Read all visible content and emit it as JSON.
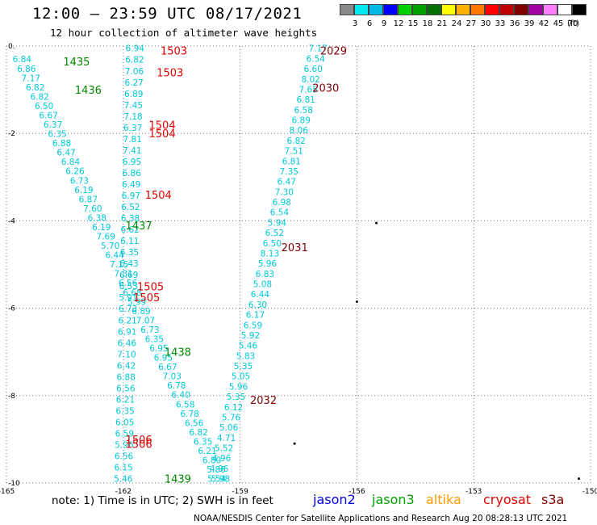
{
  "header": {
    "title": "12:00 – 23:59 UTC 08/17/2021",
    "subtitle": "12 hour collection of altimeter wave heights"
  },
  "color_scale": {
    "labels": [
      "3",
      "6",
      "9",
      "12",
      "15",
      "18",
      "21",
      "24",
      "27",
      "30",
      "33",
      "36",
      "39",
      "42",
      "45",
      "70"
    ],
    "unit": "(ft)",
    "colors": [
      "#888888",
      "#00e8f0",
      "#00b8e8",
      "#0000ff",
      "#00d000",
      "#00a000",
      "#007000",
      "#ffff00",
      "#ffb000",
      "#ff7800",
      "#ff0000",
      "#c00000",
      "#800000",
      "#a000a0",
      "#ff80ff",
      "#ffffff",
      "#000000"
    ]
  },
  "footer": {
    "note": "note:  1) Time is in UTC;  2) SWH is in feet",
    "satellites": [
      {
        "name": "jason2",
        "color": "#0000e0"
      },
      {
        "name": "jason3",
        "color": "#00a000"
      },
      {
        "name": "altika",
        "color": "#ff9900"
      },
      {
        "name": "cryosat",
        "color": "#e00000"
      },
      {
        "name": "s3a",
        "color": "#800000"
      }
    ],
    "credit": "NOAA/NESDIS Center for Satellite Applications and Research     Aug 20 08:28:13 UTC 2021"
  },
  "chart_data": {
    "type": "scatter",
    "xlim": [
      -165,
      -150
    ],
    "ylim": [
      -10,
      0
    ],
    "x_ticks": [
      "-165",
      "-162",
      "-159",
      "-156",
      "-153",
      "-150"
    ],
    "y_ticks": [
      "0.",
      "-2",
      "-4",
      "-6",
      "-8",
      "-10"
    ],
    "grid": true,
    "series": [
      {
        "track": "A",
        "color": "#00c8d8",
        "x0": -164.6,
        "y0": -0.3,
        "x1": -159.5,
        "y1": -9.9,
        "values": [
          "6.84",
          "6.86",
          "7.17",
          "6.82",
          "6.82",
          "6.50",
          "6.67",
          "6.37",
          "6.35",
          "6.88",
          "6.47",
          "6.84",
          "6.26",
          "6.73",
          "6.19",
          "6.87",
          "7.60",
          "6.38",
          "6.19",
          "7.69",
          "5.70",
          "6.44",
          "7.15",
          "7.31",
          "6.56",
          "6.68",
          "5.99",
          "6.89",
          "7.07",
          "6.73",
          "6.35",
          "6.95",
          "6.95",
          "6.67",
          "7.03",
          "6.78",
          "6.40",
          "6.58",
          "6.78",
          "6.56",
          "6.82",
          "6.35",
          "6.21",
          "6.80",
          "5.86",
          "5.98"
        ]
      },
      {
        "track": "B",
        "color": "#00c8d8",
        "x0": -161.7,
        "y0": -0.05,
        "x1": -162.0,
        "y1": -9.9,
        "values": [
          "6.94",
          "6.82",
          "7.06",
          "6.27",
          "6.89",
          "7.45",
          "7.18",
          "6.37",
          "7.81",
          "7.41",
          "6.95",
          "6.86",
          "6.49",
          "6.97",
          "6.52",
          "6.38",
          "6.62",
          "6.11",
          "6.35",
          "6.43",
          "6.69",
          "6.53",
          "5.91",
          "6.73",
          "6.21",
          "6.91",
          "6.46",
          "7.10",
          "6.42",
          "6.88",
          "6.56",
          "6.21",
          "6.35",
          "6.05",
          "6.59",
          "5.96",
          "6.56",
          "6.15",
          "5.46"
        ]
      },
      {
        "track": "C",
        "color": "#00c8d8",
        "x0": -157.0,
        "y0": -0.05,
        "x1": -159.6,
        "y1": -9.9,
        "values": [
          "7.17",
          "6.54",
          "6.60",
          "8.02",
          "7.65",
          "6.81",
          "6.58",
          "6.89",
          "8.06",
          "6.82",
          "7.51",
          "6.81",
          "7.35",
          "6.47",
          "7.30",
          "6.98",
          "6.54",
          "5.94",
          "6.52",
          "6.50",
          "8.13",
          "5.96",
          "6.83",
          "5.08",
          "6.44",
          "6.30",
          "6.17",
          "6.59",
          "5.92",
          "5.46",
          "5.83",
          "5.35",
          "5.05",
          "5.96",
          "5.35",
          "6.12",
          "5.76",
          "5.06",
          "4.71",
          "5.52",
          "4.96",
          "4.96",
          "5.54"
        ]
      },
      {
        "track": "labels",
        "items": [
          {
            "text": "1435",
            "x": -163.2,
            "y": -0.35,
            "color": "#008800"
          },
          {
            "text": "1436",
            "x": -162.9,
            "y": -1.0,
            "color": "#008800"
          },
          {
            "text": "1437",
            "x": -161.6,
            "y": -4.1,
            "color": "#008800"
          },
          {
            "text": "1438",
            "x": -160.6,
            "y": -7.0,
            "color": "#008800"
          },
          {
            "text": "1439",
            "x": -160.6,
            "y": -9.9,
            "color": "#008800"
          },
          {
            "text": "1503",
            "x": -160.7,
            "y": -0.1,
            "color": "#e00000"
          },
          {
            "text": "1503",
            "x": -160.8,
            "y": -0.6,
            "color": "#e00000"
          },
          {
            "text": "1504",
            "x": -161.0,
            "y": -1.8,
            "color": "#e00000"
          },
          {
            "text": "1504",
            "x": -161.0,
            "y": -2.0,
            "color": "#e00000"
          },
          {
            "text": "1504",
            "x": -161.1,
            "y": -3.4,
            "color": "#e00000"
          },
          {
            "text": "1505",
            "x": -161.3,
            "y": -5.5,
            "color": "#e00000"
          },
          {
            "text": "1505",
            "x": -161.4,
            "y": -5.75,
            "color": "#e00000"
          },
          {
            "text": "1506",
            "x": -161.6,
            "y": -9.0,
            "color": "#e00000"
          },
          {
            "text": "1506",
            "x": -161.6,
            "y": -9.1,
            "color": "#e00000"
          },
          {
            "text": "2029",
            "x": -156.6,
            "y": -0.1,
            "color": "#800000"
          },
          {
            "text": "2030",
            "x": -156.8,
            "y": -0.95,
            "color": "#800000"
          },
          {
            "text": "2031",
            "x": -157.6,
            "y": -4.6,
            "color": "#800000"
          },
          {
            "text": "2032",
            "x": -158.4,
            "y": -8.1,
            "color": "#800000"
          }
        ]
      }
    ]
  }
}
